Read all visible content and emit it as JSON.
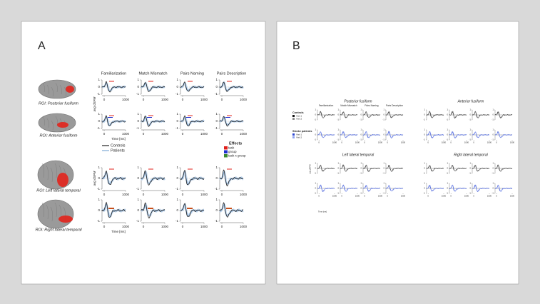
{
  "panel_a": {
    "label": "A",
    "columns": [
      "Familiarization",
      "Match Mismatch",
      "Pairs Naming",
      "Pairs Description"
    ],
    "rois": [
      "ROI: Posterior fusiform",
      "ROI: Anterior fusiform",
      "ROI: Left lateral temporal",
      "ROI: Right lateral temporal"
    ],
    "ylim": [
      -1,
      1
    ],
    "yticks": [
      1,
      0,
      -1
    ],
    "xlim": [
      -100,
      1000
    ],
    "xticks": [
      0,
      1000
    ],
    "y_axis_label": "avg dSPM",
    "x_axis_label": "Time [ms]",
    "legend": [
      {
        "name": "Controls",
        "color": "#222222"
      },
      {
        "name": "Patients",
        "color": "#7fa9d6"
      }
    ],
    "effects": {
      "title": "Effects",
      "items": [
        {
          "name": "task",
          "color": "#e0201b"
        },
        {
          "name": "group",
          "color": "#1f2fd0"
        },
        {
          "name": "task x group",
          "color": "#3c8a2e"
        }
      ]
    }
  },
  "panel_b": {
    "label": "B",
    "regions": [
      "Posterior fusiform",
      "Anterior fusiform",
      "Left lateral temporal",
      "Right lateral temporal"
    ],
    "columns": [
      "Familiarization",
      "Match Mismatch",
      "Pairs Naming",
      "Pairs Description"
    ],
    "ylim": [
      -1,
      1
    ],
    "yticks": [
      1,
      0,
      -1
    ],
    "xlim": [
      -100,
      1000
    ],
    "xticks": [
      0,
      1000
    ],
    "y_axis_label": "avg dSPM",
    "x_axis_label": "Time [ms]",
    "groups": [
      {
        "name": "Controls",
        "visits": [
          {
            "name": "Visit 1",
            "color": "#111111"
          },
          {
            "name": "Visit 2",
            "color": "#8c8c8c"
          }
        ]
      },
      {
        "name": "Stroke patients",
        "visits": [
          {
            "name": "Visit 1",
            "color": "#2b45d0"
          },
          {
            "name": "Visit 2",
            "color": "#8fa2f0"
          }
        ]
      }
    ]
  }
}
